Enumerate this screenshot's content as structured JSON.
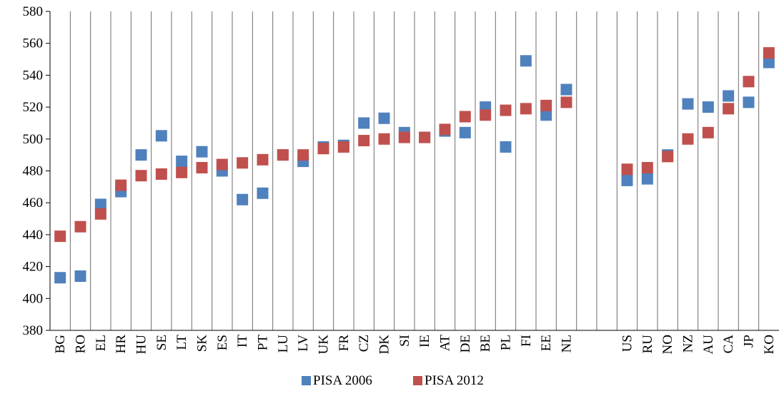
{
  "chart_data": {
    "type": "scatter",
    "title": "",
    "xlabel": "",
    "ylabel": "",
    "ylim": [
      380,
      580
    ],
    "yticks": [
      380,
      400,
      420,
      440,
      460,
      480,
      500,
      520,
      540,
      560,
      580
    ],
    "grid": "vertical separators between categories",
    "legend_position": "bottom-center",
    "categories": [
      "BG",
      "RO",
      "EL",
      "HR",
      "HU",
      "SE",
      "LT",
      "SK",
      "ES",
      "IT",
      "PT",
      "LU",
      "LV",
      "UK",
      "FR",
      "CZ",
      "DK",
      "SI",
      "IE",
      "AT",
      "DE",
      "BE",
      "PL",
      "FI",
      "EE",
      "NL",
      "",
      "",
      "US",
      "RU",
      "NO",
      "NZ",
      "AU",
      "CA",
      "JP",
      "KO"
    ],
    "series": [
      {
        "name": "PISA 2006",
        "color": "#4f81bd",
        "values": [
          413,
          414,
          459,
          467,
          490,
          502,
          486,
          492,
          480,
          462,
          466,
          490,
          486,
          495,
          496,
          510,
          513,
          504,
          501,
          505,
          504,
          520,
          495,
          549,
          515,
          531,
          null,
          null,
          474,
          475,
          490,
          522,
          520,
          527,
          523,
          548
        ]
      },
      {
        "name": "PISA 2012",
        "color": "#c0504d",
        "values": [
          439,
          445,
          453,
          471,
          477,
          478,
          479,
          482,
          484,
          485,
          487,
          490,
          490,
          494,
          495,
          499,
          500,
          501,
          501,
          506,
          514,
          515,
          518,
          519,
          521,
          523,
          null,
          null,
          481,
          482,
          489,
          500,
          504,
          519,
          536,
          554
        ]
      }
    ]
  }
}
